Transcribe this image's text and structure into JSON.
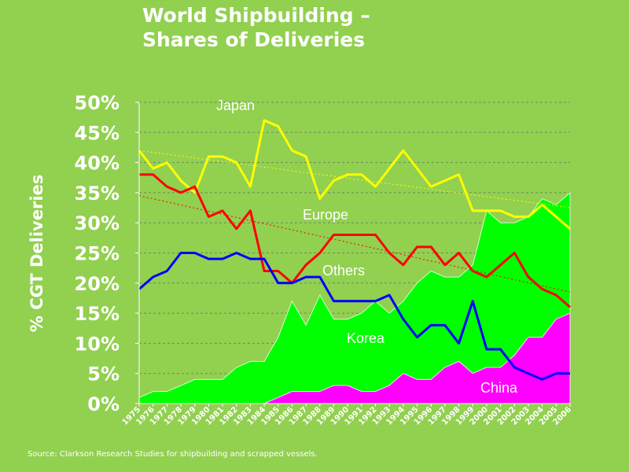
{
  "chart_data": {
    "type": "line",
    "title": "World Shipbuilding –\nShares of Deliveries",
    "title_lines": [
      "World Shipbuilding –",
      "Shares of Deliveries"
    ],
    "ylabel": "% CGT Deliveries",
    "xlabel": "",
    "ylim": [
      0,
      50
    ],
    "yticks": [
      "0%",
      "5%",
      "10%",
      "15%",
      "20%",
      "25%",
      "30%",
      "35%",
      "40%",
      "45%",
      "50%"
    ],
    "grid": true,
    "categories": [
      "1975",
      "1976",
      "1977",
      "1978",
      "1979",
      "1980",
      "1981",
      "1982",
      "1983",
      "1984",
      "1985",
      "1986",
      "1987",
      "1988",
      "1989",
      "1990",
      "1991",
      "1992",
      "1993",
      "1994",
      "1995",
      "1996",
      "1997",
      "1998",
      "1999",
      "2000",
      "2001",
      "2002",
      "2003",
      "2004",
      "2005",
      "2006"
    ],
    "series": [
      {
        "name": "Japan",
        "kind": "line",
        "color": "#ffff00",
        "values": [
          42,
          39,
          40,
          37,
          35,
          41,
          41,
          40,
          36,
          47,
          46,
          42,
          41,
          34,
          37,
          38,
          38,
          36,
          39,
          42,
          39,
          36,
          37,
          38,
          32,
          32,
          32,
          31,
          31,
          33,
          31,
          29
        ],
        "trend": [
          42,
          32.5
        ]
      },
      {
        "name": "Europe",
        "kind": "line",
        "color": "#ff0000",
        "values": [
          38,
          38,
          36,
          35,
          36,
          31,
          32,
          29,
          32,
          22,
          22,
          20,
          23,
          25,
          28,
          28,
          28,
          28,
          25,
          23,
          26,
          26,
          23,
          25,
          22,
          21,
          23,
          25,
          21,
          19,
          18,
          16
        ],
        "trend": [
          34.5,
          18.5
        ]
      },
      {
        "name": "Others",
        "kind": "line",
        "color": "#0000ff",
        "values": [
          19,
          21,
          22,
          25,
          25,
          24,
          24,
          25,
          24,
          24,
          20,
          20,
          21,
          21,
          17,
          17,
          17,
          17,
          18,
          14,
          11,
          13,
          13,
          10,
          17,
          9,
          9,
          6,
          5,
          4,
          5,
          5
        ]
      },
      {
        "name": "Korea",
        "kind": "stacked-area",
        "color": "#00ff00",
        "values": [
          1,
          2,
          2,
          3,
          4,
          4,
          4,
          6,
          7,
          7,
          10,
          15,
          11,
          16,
          11,
          11,
          13,
          15,
          12,
          12,
          16,
          18,
          15,
          14,
          18,
          26,
          24,
          22,
          20,
          23,
          19,
          20
        ]
      },
      {
        "name": "China",
        "kind": "stacked-area",
        "color": "#ff00ff",
        "values": [
          0,
          0,
          0,
          0,
          0,
          0,
          0,
          0,
          0,
          0,
          1,
          2,
          2,
          2,
          3,
          3,
          2,
          2,
          3,
          5,
          4,
          4,
          6,
          7,
          5,
          6,
          6,
          8,
          11,
          11,
          14,
          15
        ]
      }
    ],
    "background": "#92d050"
  },
  "source": "Source: Clarkson Research Studies for shipbuilding  and scrapped vessels."
}
